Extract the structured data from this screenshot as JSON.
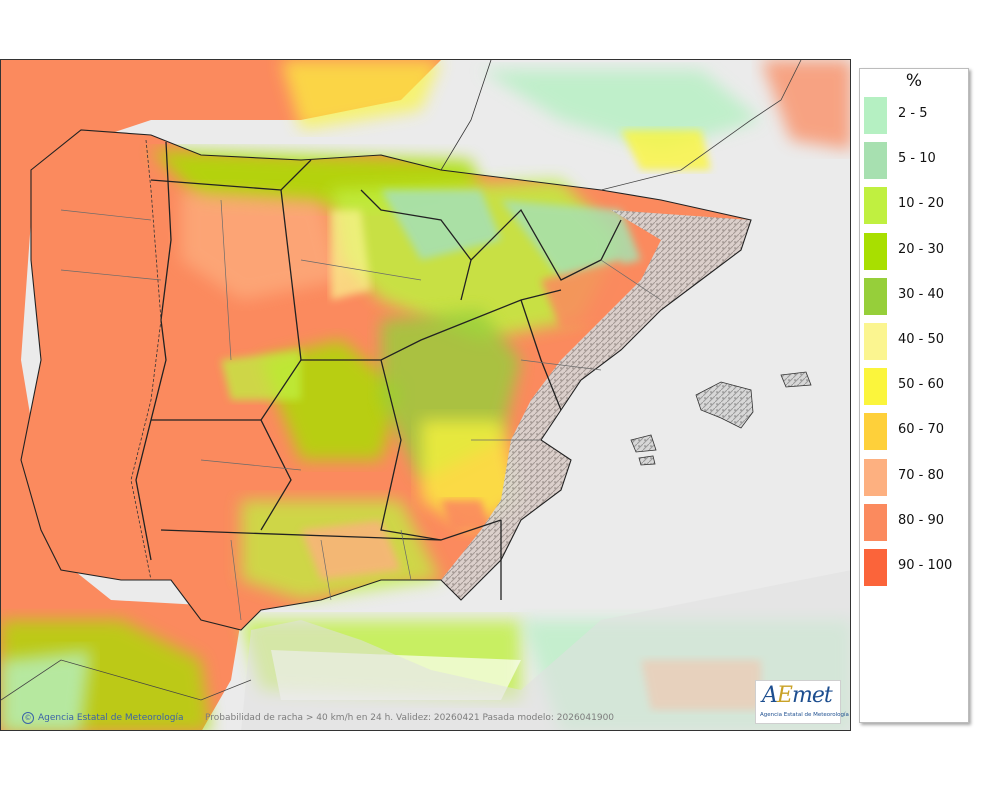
{
  "legend": {
    "title": "%",
    "items": [
      {
        "label": "2 - 5",
        "color": "#b5f0c2"
      },
      {
        "label": "5 - 10",
        "color": "#a7e0b0"
      },
      {
        "label": "10 - 20",
        "color": "#c0f040"
      },
      {
        "label": "20 - 30",
        "color": "#a8df00"
      },
      {
        "label": "30 - 40",
        "color": "#96cf3a"
      },
      {
        "label": "40 - 50",
        "color": "#fbf590"
      },
      {
        "label": "50 - 60",
        "color": "#fbf53c"
      },
      {
        "label": "60 - 70",
        "color": "#fed03a"
      },
      {
        "label": "70 - 80",
        "color": "#fdb080"
      },
      {
        "label": "80 - 90",
        "color": "#fb8a5e"
      },
      {
        "label": "90 - 100",
        "color": "#fb643a"
      }
    ]
  },
  "footer": {
    "credit": "Agencia Estatal de Meteorología",
    "caption": "Probabilidad de racha > 40 km/h en 24 h. Validez: 20260421 Pasada modelo: 2026041900"
  },
  "logo": {
    "text": "Agencia Estatal de Meteorología"
  }
}
